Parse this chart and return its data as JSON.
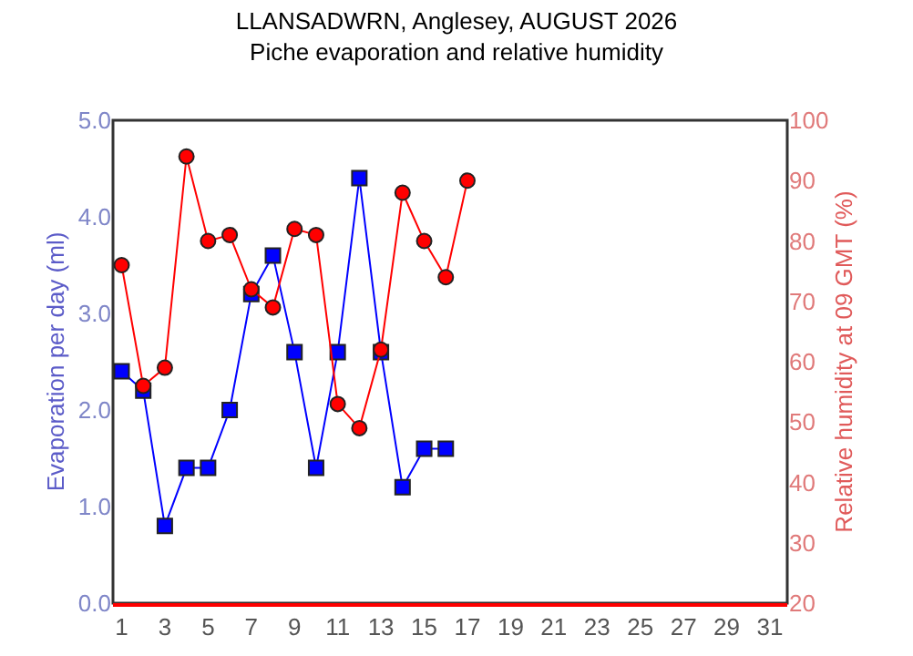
{
  "chart_data": {
    "type": "line",
    "title": "LLANSADWRN, Anglesey, AUGUST 2026",
    "subtitle": "Piche evaporation and relative humidity",
    "ylabel": "Evaporation per day (ml)",
    "y2label": "Relative humidity at 09 GMT (%)",
    "series": [
      {
        "color": "#0000ff",
        "marker": "square",
        "x": [
          1,
          2,
          3,
          4,
          5,
          6,
          7,
          8,
          9,
          10,
          11,
          12,
          13,
          14,
          15,
          16
        ],
        "values": [
          2.4,
          2.2,
          0.8,
          1.4,
          1.4,
          2.0,
          3.2,
          3.6,
          2.6,
          1.4,
          2.6,
          4.4,
          2.6,
          1.2,
          1.6,
          1.6
        ]
      },
      {
        "color": "#ff0000",
        "marker": "circle",
        "axis": "y2",
        "x": [
          1,
          2,
          3,
          4,
          5,
          6,
          7,
          8,
          9,
          10,
          11,
          12,
          13,
          14,
          15,
          16,
          17
        ],
        "values": [
          76,
          56,
          59,
          94,
          80,
          81,
          72,
          69,
          82,
          81,
          53,
          49,
          62,
          88,
          80,
          74,
          90
        ]
      }
    ],
    "xlim": [
      0.6,
      31.8
    ],
    "xticks": [
      1,
      3,
      5,
      7,
      9,
      11,
      13,
      15,
      17,
      19,
      21,
      23,
      25,
      27,
      29,
      31
    ],
    "ylim": [
      0,
      5
    ],
    "yticks": [
      {
        "value": 0,
        "label": "0.0"
      },
      {
        "value": 1,
        "label": "1.0"
      },
      {
        "value": 2,
        "label": "2.0"
      },
      {
        "value": 3,
        "label": "3.0"
      },
      {
        "value": 4,
        "label": "4.0"
      },
      {
        "value": 5,
        "label": "5.0"
      }
    ],
    "y2lim": [
      20,
      100
    ],
    "y2ticks": [
      20,
      30,
      40,
      50,
      60,
      70,
      80,
      90,
      100
    ],
    "grid": false
  }
}
